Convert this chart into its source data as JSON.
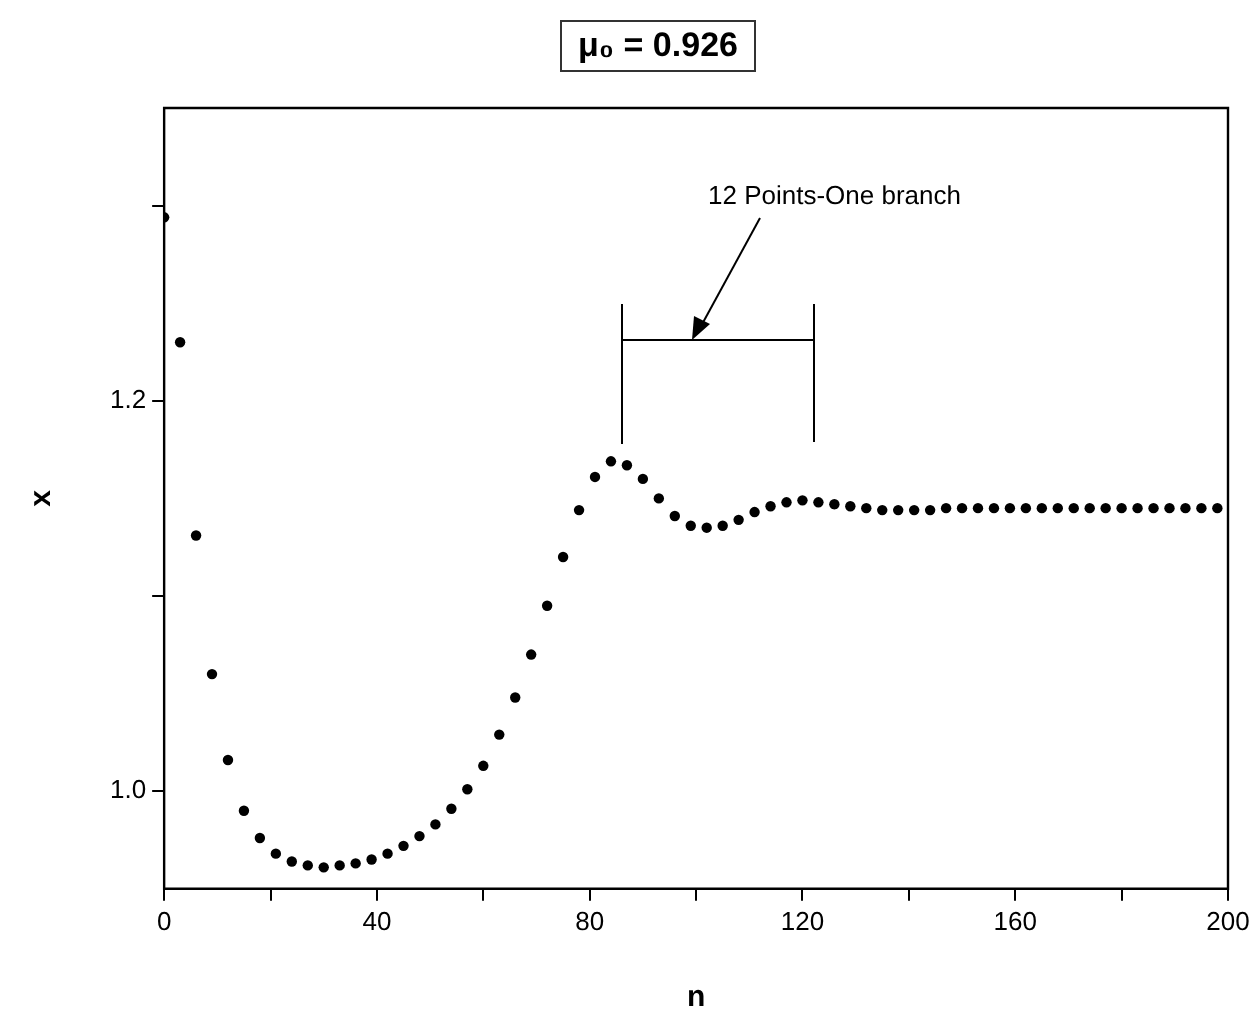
{
  "chart_data": {
    "type": "scatter",
    "title": "μ₀ = 0.926",
    "xlabel": "n",
    "ylabel": "x",
    "annotations": [
      "12 Points-One branch"
    ],
    "x": [
      0,
      3,
      6,
      9,
      12,
      15,
      18,
      21,
      24,
      27,
      30,
      33,
      36,
      39,
      42,
      45,
      48,
      51,
      54,
      57,
      60,
      63,
      66,
      69,
      72,
      75,
      78,
      81,
      84,
      87,
      90,
      93,
      96,
      99,
      102,
      105,
      108,
      111,
      114,
      117,
      120,
      123,
      126,
      129,
      132,
      135,
      138,
      141,
      144,
      147,
      150,
      153,
      156,
      159,
      162,
      165,
      168,
      171,
      174,
      177,
      180,
      183,
      186,
      189,
      192,
      195,
      198
    ],
    "series": [
      {
        "color": "#000000",
        "values": [
          1.294,
          1.23,
          1.131,
          1.06,
          1.016,
          0.99,
          0.976,
          0.968,
          0.964,
          0.962,
          0.961,
          0.962,
          0.963,
          0.965,
          0.968,
          0.972,
          0.977,
          0.983,
          0.991,
          1.001,
          1.013,
          1.029,
          1.048,
          1.07,
          1.095,
          1.12,
          1.144,
          1.161,
          1.169,
          1.167,
          1.16,
          1.15,
          1.141,
          1.136,
          1.135,
          1.136,
          1.139,
          1.143,
          1.146,
          1.148,
          1.149,
          1.148,
          1.147,
          1.146,
          1.145,
          1.144,
          1.144,
          1.144,
          1.144,
          1.145,
          1.145,
          1.145,
          1.145,
          1.145,
          1.145,
          1.145,
          1.145,
          1.145,
          1.145,
          1.145,
          1.145,
          1.145,
          1.145,
          1.145,
          1.145,
          1.145,
          1.145
        ]
      }
    ],
    "xlim": [
      0,
      200
    ],
    "xticks": [
      0,
      {
        "value": 20,
        "label": null
      },
      40,
      {
        "value": 60,
        "label": null
      },
      80,
      {
        "value": 100,
        "label": null
      },
      120,
      {
        "value": 140,
        "label": null
      },
      160,
      {
        "value": 180,
        "label": null
      },
      200
    ],
    "ylim": [
      0.95,
      1.35
    ],
    "yticks": [
      {
        "value": 1.0,
        "label": "1.0"
      },
      {
        "value": 1.1,
        "label": null
      },
      {
        "value": 1.2,
        "label": "1.2"
      },
      {
        "value": 1.3,
        "label": null
      }
    ],
    "grid": false,
    "legend": false,
    "marker": "circle"
  }
}
